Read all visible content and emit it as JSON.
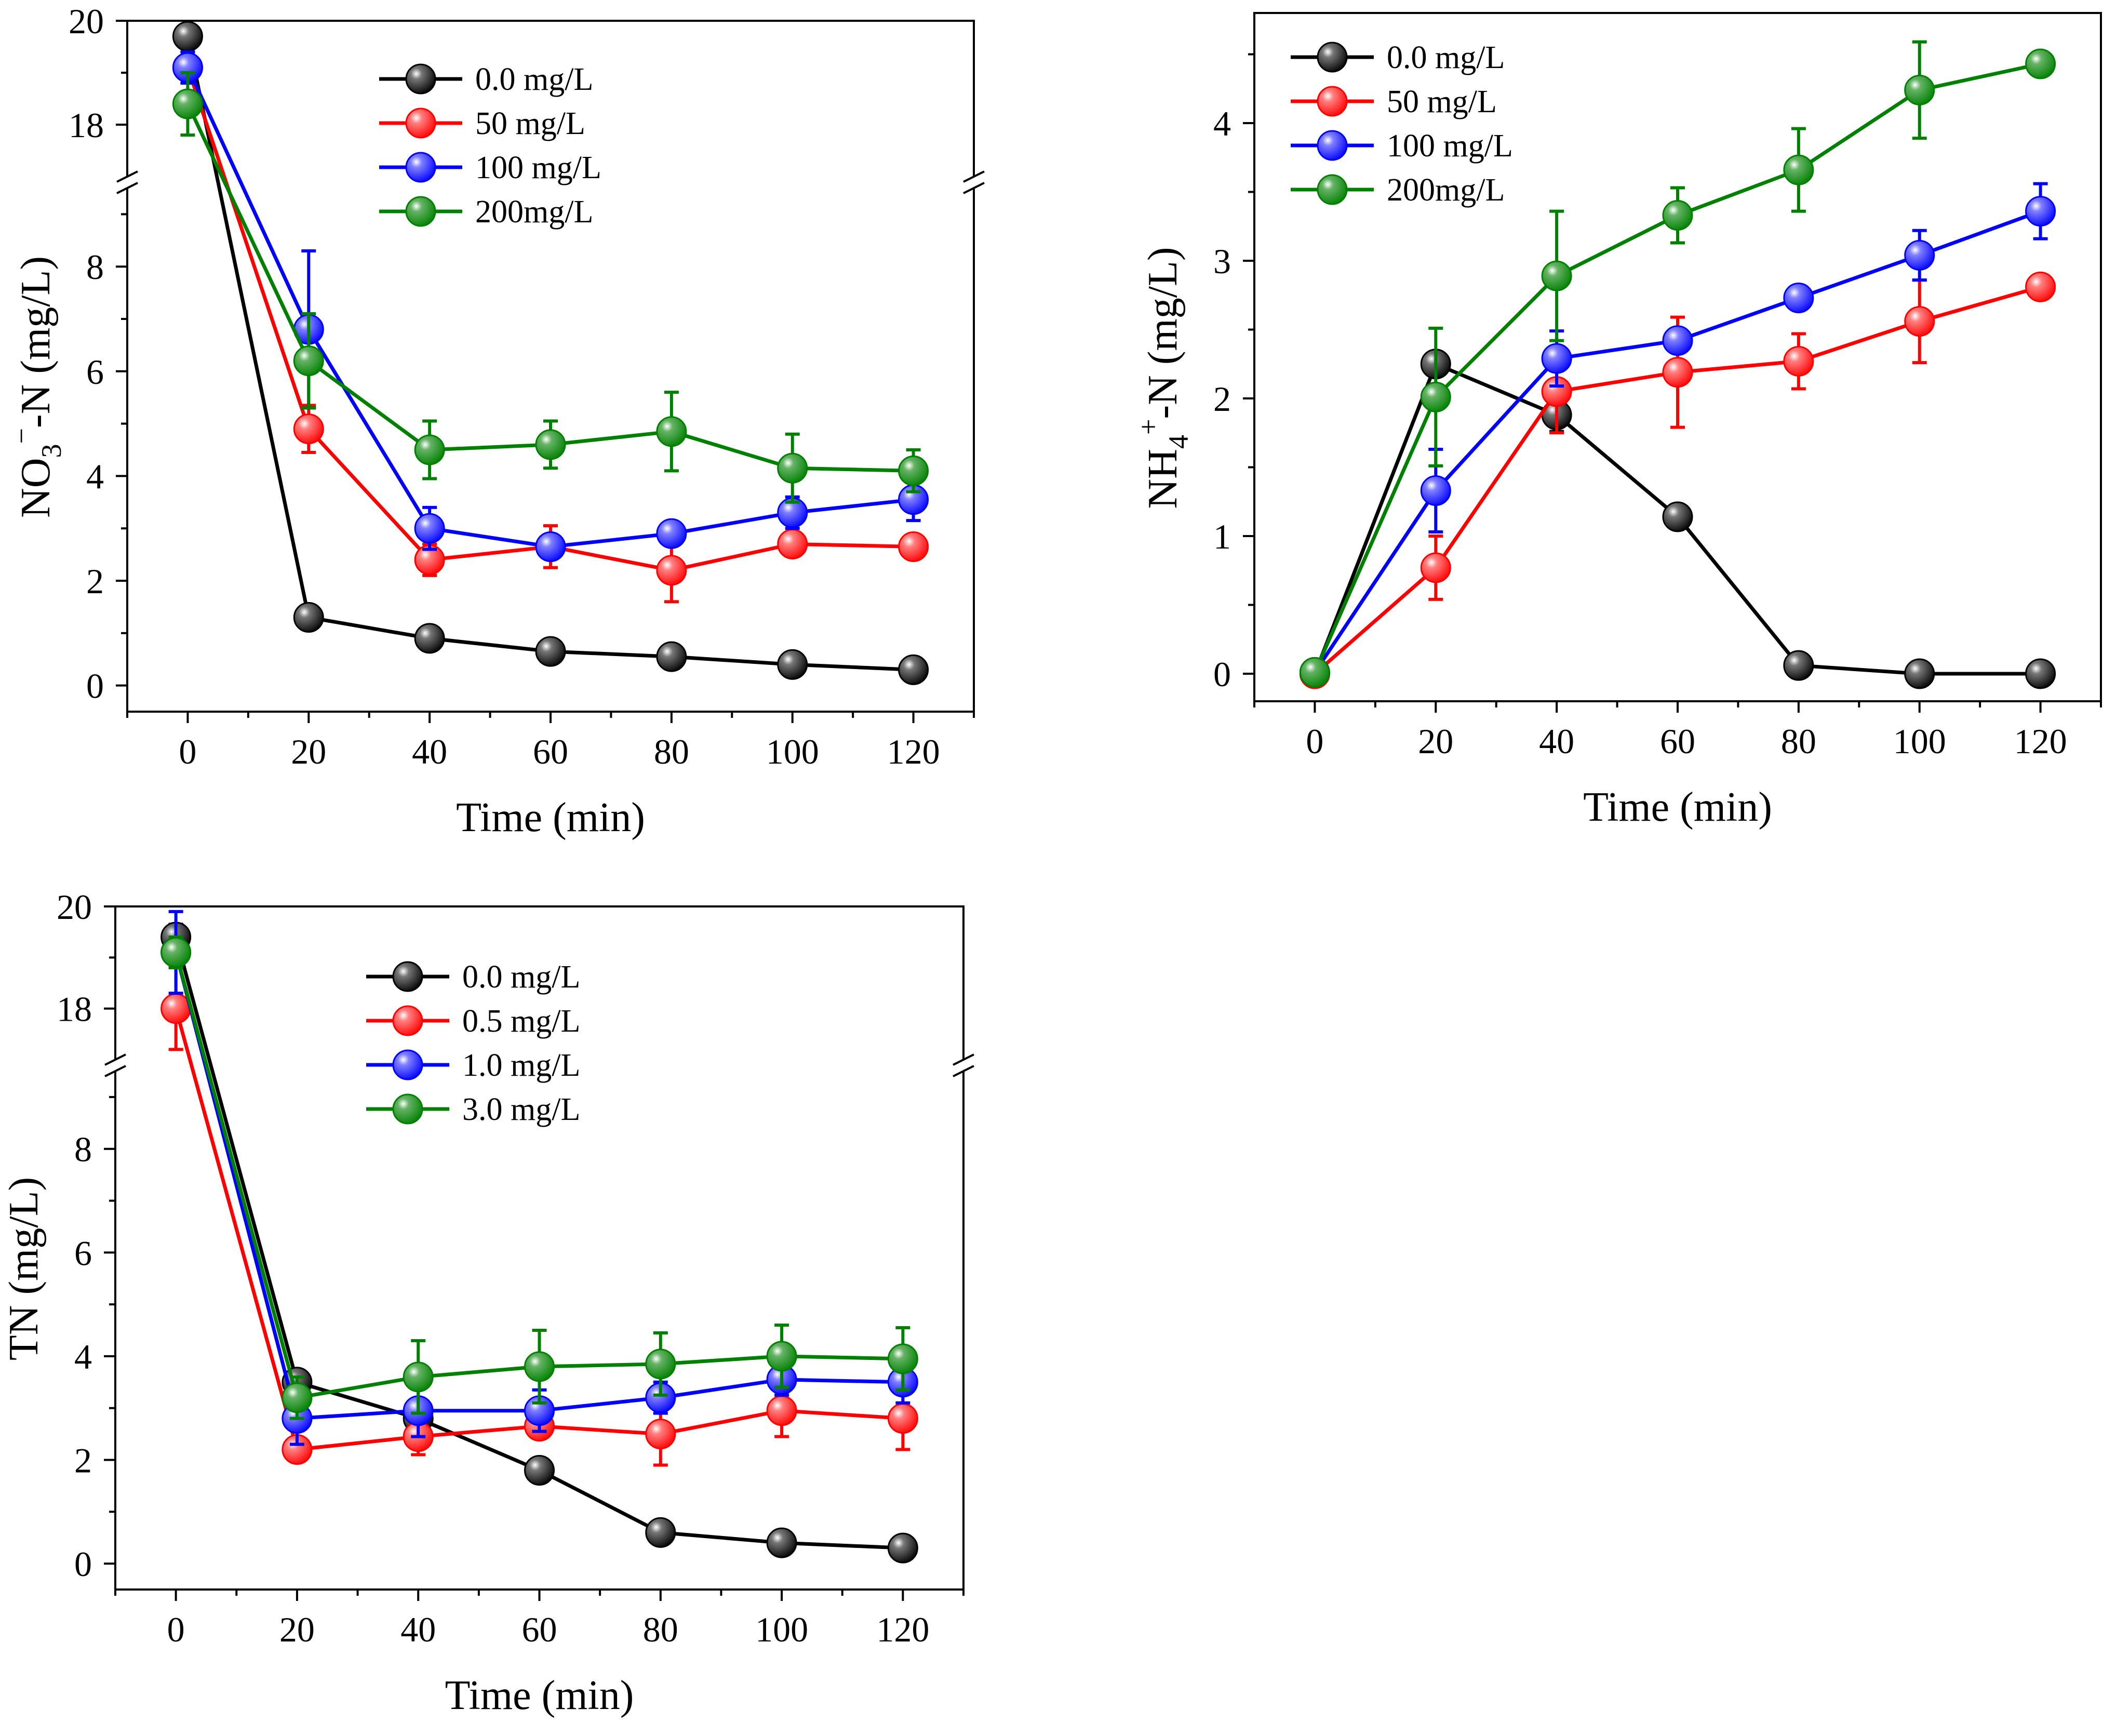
{
  "chart_data": [
    {
      "id": "no3",
      "type": "line",
      "ylabel_parts": [
        "NO",
        "3",
        "−",
        "-N (mg/L)"
      ],
      "xlabel": "Time (min)",
      "x": [
        0,
        20,
        40,
        60,
        80,
        100,
        120
      ],
      "xticks": [
        "0",
        "20",
        "40",
        "60",
        "80",
        "100",
        "120"
      ],
      "xlim": [
        -10,
        130
      ],
      "y_broken": true,
      "y_lower_range": [
        -0.5,
        9.5
      ],
      "y_upper_range": [
        17.0,
        20.0
      ],
      "yticks_lower": [
        "0",
        "2",
        "4",
        "6",
        "8"
      ],
      "yticks_upper": [
        "18",
        "20"
      ],
      "series": [
        {
          "name": "0.0 mg/L",
          "color": "#000000",
          "values": [
            19.7,
            1.3,
            0.9,
            0.65,
            0.55,
            0.4,
            0.3
          ],
          "errors": [
            0.2,
            0.1,
            0.15,
            0.1,
            0.1,
            0.1,
            0.1
          ]
        },
        {
          "name": "50 mg/L",
          "color": "#ff0000",
          "values": [
            19.1,
            4.9,
            2.4,
            2.65,
            2.2,
            2.7,
            2.65
          ],
          "errors": [
            0.3,
            0.45,
            0.3,
            0.4,
            0.6,
            0.2,
            0.2
          ]
        },
        {
          "name": "100 mg/L",
          "color": "#0000ff",
          "values": [
            19.1,
            6.8,
            3.0,
            2.65,
            2.9,
            3.3,
            3.55
          ],
          "errors": [
            0.3,
            1.5,
            0.4,
            0.2,
            0.2,
            0.3,
            0.4
          ]
        },
        {
          "name": "200mg/L",
          "color": "#008000",
          "values": [
            18.4,
            6.2,
            4.5,
            4.6,
            4.85,
            4.15,
            4.1
          ],
          "errors": [
            0.6,
            0.9,
            0.55,
            0.45,
            0.75,
            0.65,
            0.4
          ]
        }
      ]
    },
    {
      "id": "nh4",
      "type": "line",
      "ylabel_parts": [
        "NH",
        "4",
        "+",
        "-N (mg/L)"
      ],
      "xlabel": "Time (min)",
      "x": [
        0,
        20,
        40,
        60,
        80,
        100,
        120
      ],
      "xticks": [
        "0",
        "20",
        "40",
        "60",
        "80",
        "100",
        "120"
      ],
      "xlim": [
        -10,
        130
      ],
      "ylim": [
        -0.2,
        4.8
      ],
      "yticks": [
        "0",
        "1",
        "2",
        "3",
        "4"
      ],
      "series": [
        {
          "name": "0.0 mg/L",
          "color": "#000000",
          "values": [
            0.0,
            2.25,
            1.88,
            1.14,
            0.06,
            0.0,
            0.0
          ],
          "errors": [
            0.03,
            0.05,
            0.12,
            0.05,
            0.03,
            0.02,
            0.02
          ]
        },
        {
          "name": "50 mg/L",
          "color": "#ff0000",
          "values": [
            0.0,
            0.77,
            2.05,
            2.19,
            2.27,
            2.56,
            2.81
          ],
          "errors": [
            0.03,
            0.23,
            0.3,
            0.4,
            0.2,
            0.3,
            0.06
          ]
        },
        {
          "name": "100 mg/L",
          "color": "#0000ff",
          "values": [
            0.01,
            1.33,
            2.29,
            2.42,
            2.73,
            3.04,
            3.36
          ],
          "errors": [
            0.03,
            0.3,
            0.2,
            0.05,
            0.05,
            0.18,
            0.2
          ]
        },
        {
          "name": "200mg/L",
          "color": "#008000",
          "values": [
            0.01,
            2.01,
            2.89,
            3.33,
            3.66,
            4.24,
            4.43
          ],
          "errors": [
            0.03,
            0.5,
            0.47,
            0.2,
            0.3,
            0.35,
            0.05
          ]
        }
      ]
    },
    {
      "id": "tn",
      "type": "line",
      "ylabel_parts": [
        "TN (mg/L)"
      ],
      "xlabel": "Time (min)",
      "x": [
        0,
        20,
        40,
        60,
        80,
        100,
        120
      ],
      "xticks": [
        "0",
        "20",
        "40",
        "60",
        "80",
        "100",
        "120"
      ],
      "xlim": [
        -10,
        130
      ],
      "y_broken": true,
      "y_lower_range": [
        -0.5,
        9.5
      ],
      "y_upper_range": [
        17.0,
        20.0
      ],
      "yticks_lower": [
        "0",
        "2",
        "4",
        "6",
        "8"
      ],
      "yticks_upper": [
        "18",
        "20"
      ],
      "series": [
        {
          "name": "0.0 mg/L",
          "color": "#000000",
          "values": [
            19.4,
            3.5,
            2.8,
            1.8,
            0.6,
            0.4,
            0.3
          ],
          "errors": [
            0.25,
            0.15,
            0.15,
            0.1,
            0.1,
            0.1,
            0.1
          ]
        },
        {
          "name": "0.5 mg/L",
          "color": "#ff0000",
          "values": [
            18.0,
            2.2,
            2.45,
            2.65,
            2.5,
            2.95,
            2.8
          ],
          "errors": [
            0.8,
            0.2,
            0.35,
            0.2,
            0.6,
            0.5,
            0.6
          ]
        },
        {
          "name": "1.0 mg/L",
          "color": "#0000ff",
          "values": [
            19.1,
            2.8,
            2.95,
            2.95,
            3.2,
            3.55,
            3.5
          ],
          "errors": [
            0.8,
            0.5,
            0.5,
            0.4,
            0.3,
            0.3,
            0.4
          ]
        },
        {
          "name": "3.0 mg/L",
          "color": "#008000",
          "values": [
            19.1,
            3.2,
            3.6,
            3.8,
            3.85,
            4.0,
            3.95
          ],
          "errors": [
            0.3,
            0.4,
            0.7,
            0.7,
            0.6,
            0.6,
            0.6
          ]
        }
      ]
    }
  ]
}
